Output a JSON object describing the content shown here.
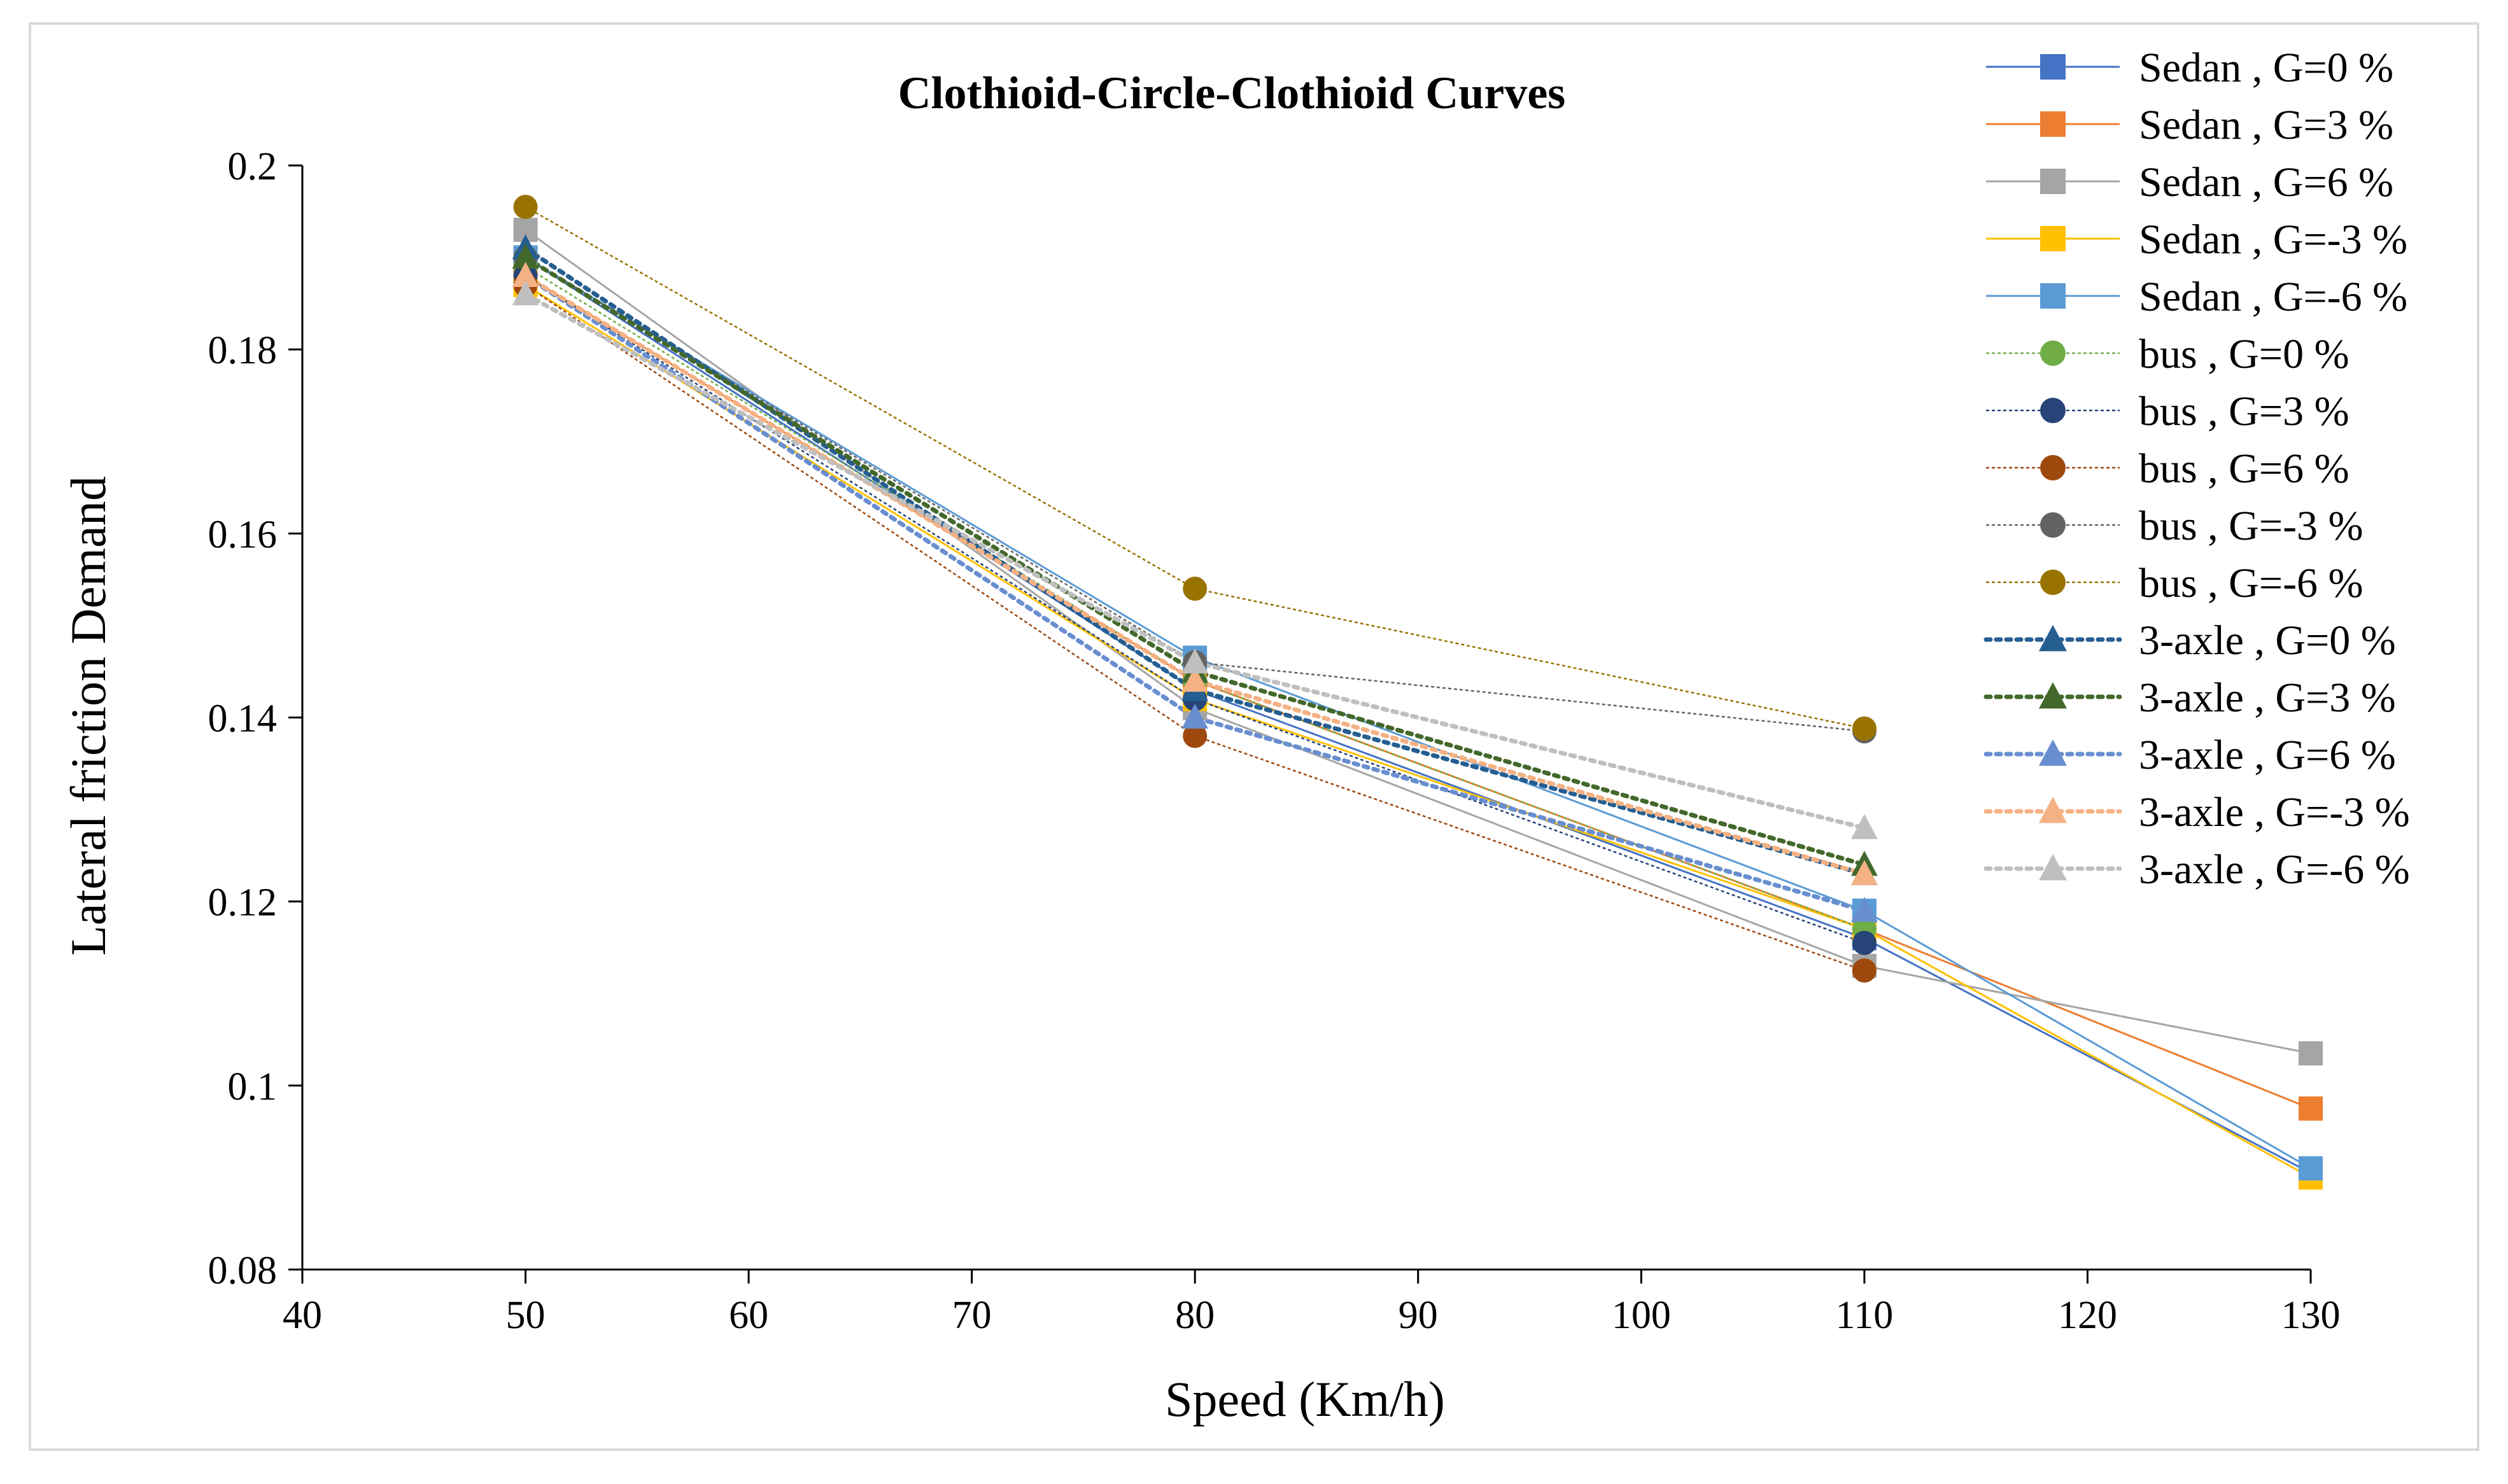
{
  "chart_data": {
    "type": "line",
    "title": "Clothioid-Circle-Clothioid Curves",
    "xlabel": "Speed (Km/h)",
    "ylabel": "Lateral friction Demand",
    "xlim": [
      40,
      130
    ],
    "ylim": [
      0.08,
      0.2
    ],
    "xticks": [
      "40",
      "50",
      "60",
      "70",
      "80",
      "90",
      "100",
      "110",
      "120",
      "130"
    ],
    "yticks": [
      "0.08",
      "0.1",
      "0.12",
      "0.14",
      "0.16",
      "0.18",
      "0.2"
    ],
    "grid": false,
    "legend_position": "right",
    "series": [
      {
        "name": "Sedan , G=0 %",
        "color": "#4472c4",
        "dash": "solid",
        "marker": "square",
        "x": [
          50,
          80,
          110,
          130
        ],
        "values": [
          0.19,
          0.143,
          0.116,
          0.0905
        ]
      },
      {
        "name": "Sedan , G=3 %",
        "color": "#ed7d31",
        "dash": "solid",
        "marker": "square",
        "x": [
          50,
          80,
          110,
          130
        ],
        "values": [
          0.188,
          0.144,
          0.117,
          0.0975
        ]
      },
      {
        "name": "Sedan , G=6 %",
        "color": "#a5a5a5",
        "dash": "solid",
        "marker": "square",
        "x": [
          50,
          80,
          110,
          130
        ],
        "values": [
          0.193,
          0.141,
          0.113,
          0.1035
        ]
      },
      {
        "name": "Sedan , G=-3 %",
        "color": "#ffc000",
        "dash": "solid",
        "marker": "square",
        "x": [
          50,
          80,
          110,
          130
        ],
        "values": [
          0.187,
          0.142,
          0.117,
          0.09
        ]
      },
      {
        "name": "Sedan , G=-6 %",
        "color": "#5b9bd5",
        "dash": "solid",
        "marker": "square",
        "x": [
          50,
          80,
          110,
          130
        ],
        "values": [
          0.19,
          0.1465,
          0.119,
          0.091
        ]
      },
      {
        "name": "bus , G=0 %",
        "color": "#70ad47",
        "dash": "thin",
        "marker": "circle",
        "x": [
          50,
          80,
          110
        ],
        "values": [
          0.189,
          0.144,
          0.117
        ]
      },
      {
        "name": "bus , G=3 %",
        "color": "#264478",
        "dash": "thin",
        "marker": "circle",
        "x": [
          50,
          80,
          110
        ],
        "values": [
          0.188,
          0.142,
          0.1155
        ]
      },
      {
        "name": "bus , G=6 %",
        "color": "#9e480e",
        "dash": "thin",
        "marker": "circle",
        "x": [
          50,
          80,
          110
        ],
        "values": [
          0.187,
          0.138,
          0.1125
        ]
      },
      {
        "name": "bus , G=-3 %",
        "color": "#636363",
        "dash": "thin",
        "marker": "circle",
        "x": [
          50,
          80,
          110
        ],
        "values": [
          0.19,
          0.146,
          0.1385
        ]
      },
      {
        "name": "bus , G=-6 %",
        "color": "#997300",
        "dash": "thin",
        "marker": "circle",
        "x": [
          50,
          80,
          110
        ],
        "values": [
          0.1955,
          0.154,
          0.1388
        ]
      },
      {
        "name": "3-axle , G=0 %",
        "color": "#255e91",
        "dash": "dotted",
        "marker": "triangle",
        "x": [
          50,
          80,
          110
        ],
        "values": [
          0.191,
          0.143,
          0.123
        ]
      },
      {
        "name": "3-axle , G=3 %",
        "color": "#43682b",
        "dash": "dotted",
        "marker": "triangle",
        "x": [
          50,
          80,
          110
        ],
        "values": [
          0.19,
          0.145,
          0.124
        ]
      },
      {
        "name": "3-axle , G=6 %",
        "color": "#698ed0",
        "dash": "dotted",
        "marker": "triangle",
        "x": [
          50,
          80,
          110
        ],
        "values": [
          0.188,
          0.14,
          0.119
        ]
      },
      {
        "name": "3-axle , G=-3 %",
        "color": "#f4b183",
        "dash": "dotted",
        "marker": "triangle",
        "x": [
          50,
          80,
          110
        ],
        "values": [
          0.188,
          0.144,
          0.123
        ]
      },
      {
        "name": "3-axle , G=-6 %",
        "color": "#bfbfbf",
        "dash": "dotted",
        "marker": "triangle",
        "x": [
          50,
          80,
          110
        ],
        "values": [
          0.186,
          0.146,
          0.128
        ]
      }
    ]
  }
}
